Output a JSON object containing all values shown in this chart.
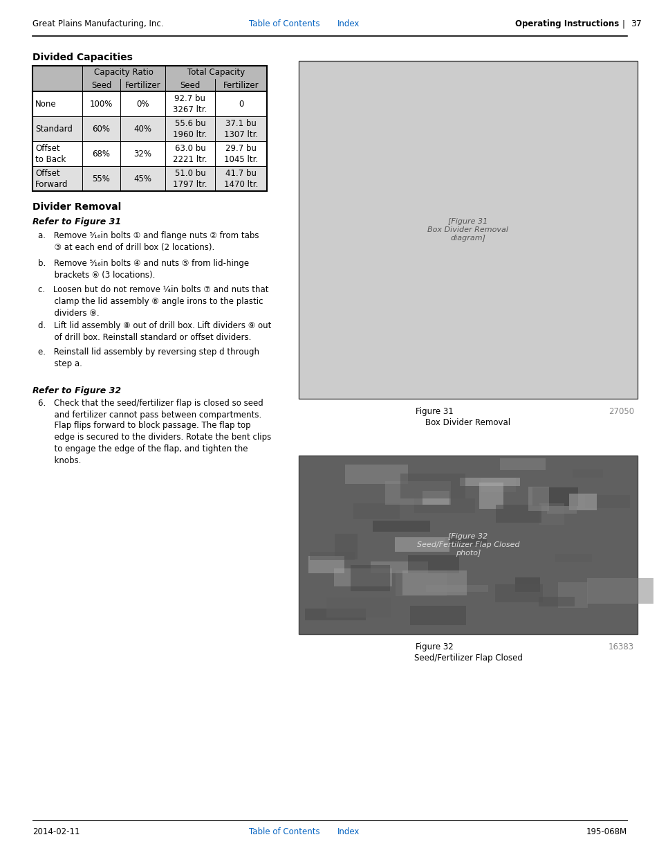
{
  "page_bg": "#ffffff",
  "header_left": "Great Plains Manufacturing, Inc.",
  "header_right_bold": "Operating Instructions",
  "header_right_num": "37",
  "footer_left": "2014-02-11",
  "footer_right": "195-068M",
  "section1_title": "Divided Capacities",
  "table_header1": "Capacity Ratio",
  "table_header2": "Total Capacity",
  "table_subheaders": [
    "Seed",
    "Fertilizer",
    "Seed",
    "Fertilizer"
  ],
  "table_rows": [
    {
      "label": "None",
      "cap_seed": "100%",
      "cap_fert": "0%",
      "tot_seed": "92.7 bu\n3267 ltr.",
      "tot_fert": "0"
    },
    {
      "label": "Standard",
      "cap_seed": "60%",
      "cap_fert": "40%",
      "tot_seed": "55.6 bu\n1960 ltr.",
      "tot_fert": "37.1 bu\n1307 ltr."
    },
    {
      "label": "Offset\nto Back",
      "cap_seed": "68%",
      "cap_fert": "32%",
      "tot_seed": "63.0 bu\n2221 ltr.",
      "tot_fert": "29.7 bu\n1045 ltr."
    },
    {
      "label": "Offset\nForward",
      "cap_seed": "55%",
      "cap_fert": "45%",
      "tot_seed": "51.0 bu\n1797 ltr.",
      "tot_fert": "41.7 bu\n1470 ltr."
    }
  ],
  "section2_title": "Divider Removal",
  "refer31": "Refer to Figure 31",
  "steps": [
    "a. Remove ⁵⁄₁₆in bolts ① and flange nuts ② from tabs\n  ③ at each end of drill box (2 locations).",
    "b. Remove ⁵⁄₁₆in bolts ④ and nuts ⑤ from lid-hinge\n  brackets ⑥ (3 locations).",
    "c. Loosen but do not remove ¼in bolts ⑦ and nuts that\n  clamp the lid assembly ⑧ angle irons to the plastic\n  dividers ⑨.",
    "d. Lift lid assembly ⑧ out of drill box. Lift dividers ⑨ out\n  of drill box. Reinstall standard or offset dividers.",
    "e. Reinstall lid assembly by reversing step d through\n  step a."
  ],
  "step_spacings": [
    40,
    38,
    52,
    38,
    34
  ],
  "refer32": "Refer to Figure 32",
  "step6_line1": "6. Check that the seed/fertilizer flap is closed so seed\n  and fertilizer cannot pass between compartments.",
  "step6_line2": "  Flap flips forward to block passage. The flap top\n  edge is secured to the dividers. Rotate the bent clips\n  to engage the edge of the flap, and tighten the\n  knobs.",
  "fig31_label": "Figure 31",
  "fig31_num": "27050",
  "fig31_caption": "Box Divider Removal",
  "fig32_label": "Figure 32",
  "fig32_num": "16383",
  "fig32_caption": "Seed/Fertilizer Flap Closed",
  "link_color": "#0563C1",
  "gray_num_color": "#888888",
  "table_header_bg": "#b8b8b8",
  "table_row_bg_white": "#ffffff",
  "table_row_bg_gray": "#e0e0e0"
}
